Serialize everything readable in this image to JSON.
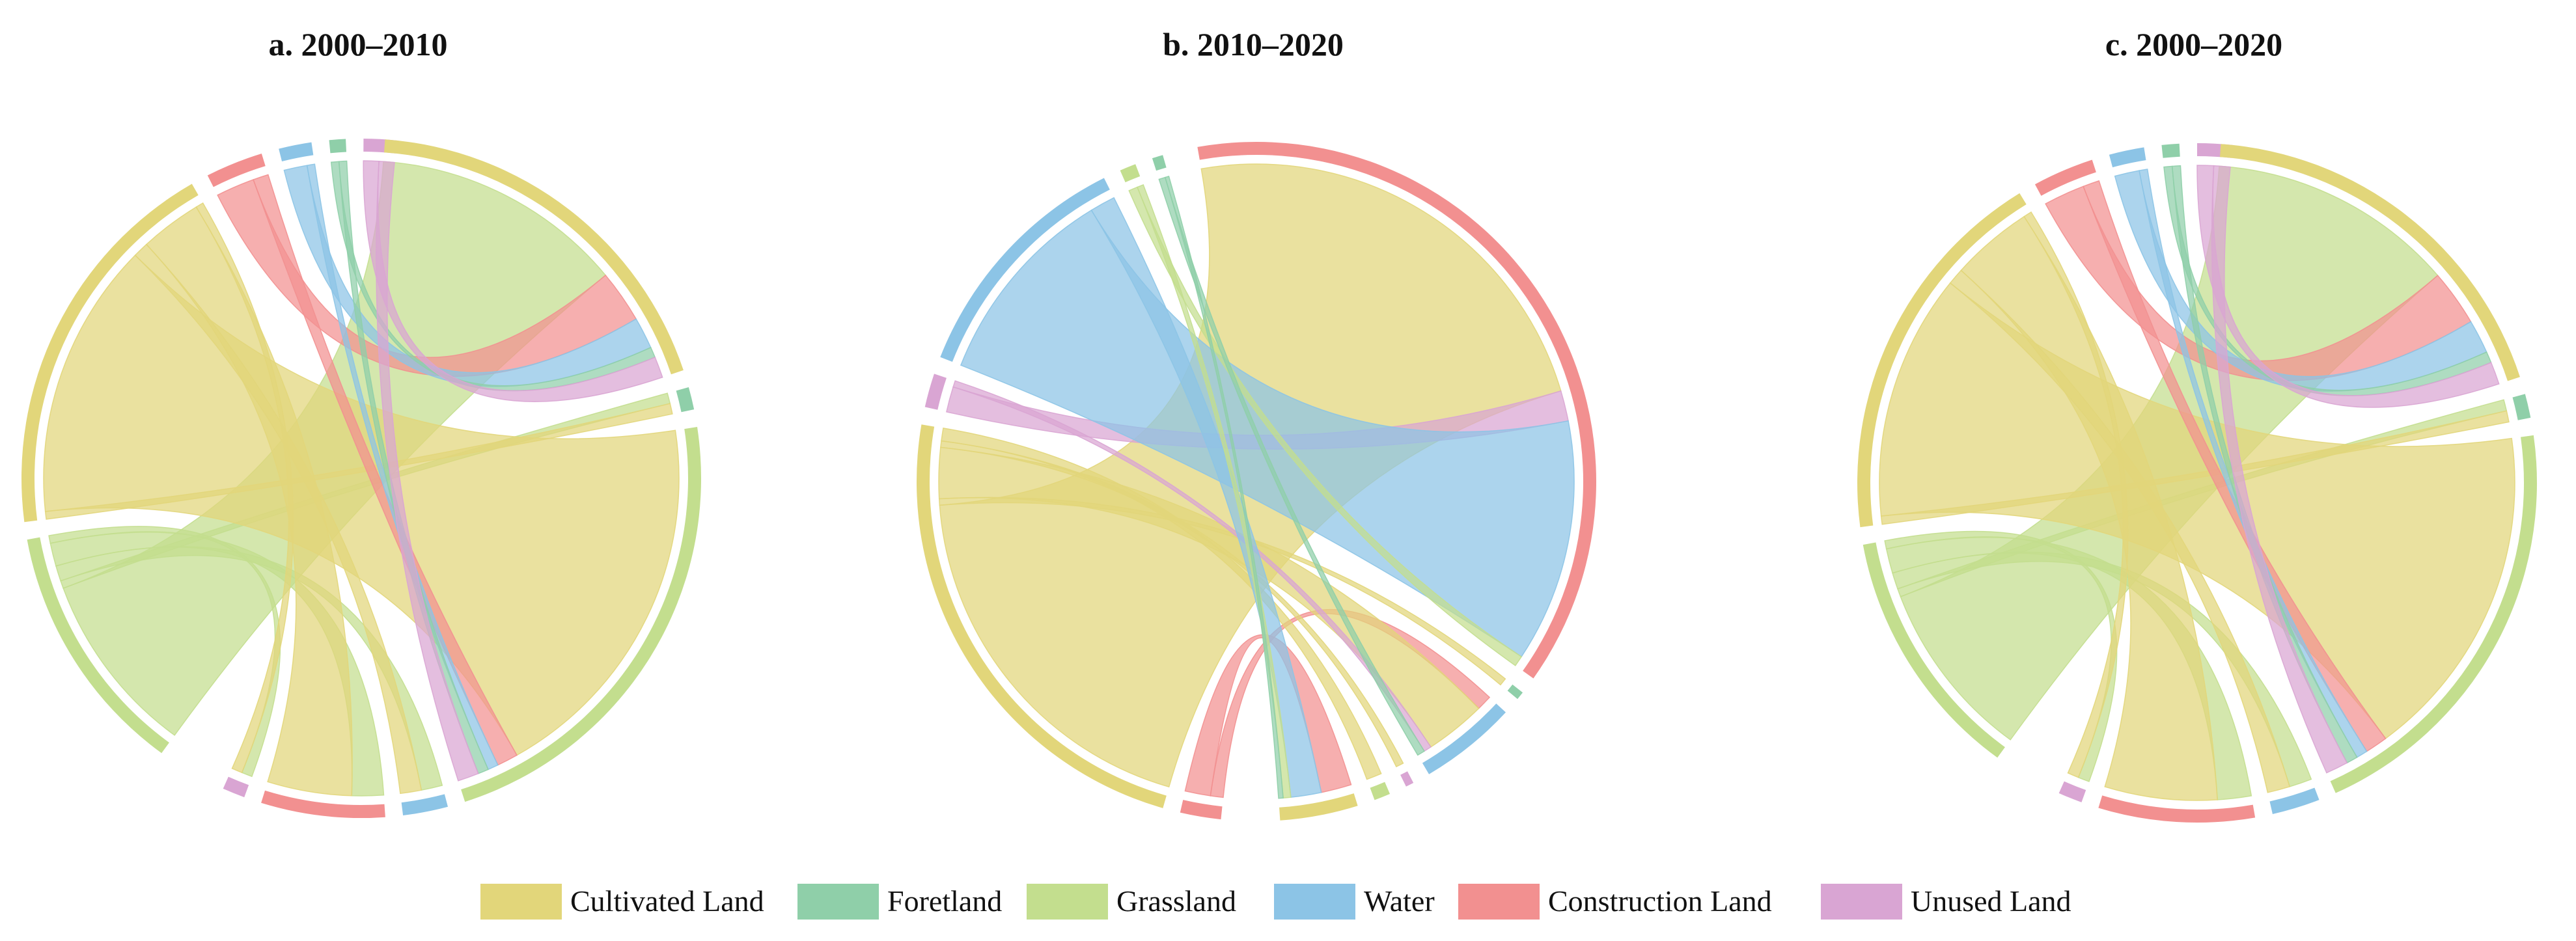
{
  "figure": {
    "legend": [
      {
        "key": "cultivated",
        "label": "Cultivated Land",
        "color": "#E2D67A"
      },
      {
        "key": "foreland",
        "label": "Foretland",
        "color": "#8FCFA9"
      },
      {
        "key": "grassland",
        "label": "Grassland",
        "color": "#C3DE8E"
      },
      {
        "key": "water",
        "label": "Water",
        "color": "#8CC4E6"
      },
      {
        "key": "construction",
        "label": "Construction Land",
        "color": "#F29090"
      },
      {
        "key": "unused",
        "label": "Unused Land",
        "color": "#D9A5D3"
      }
    ]
  },
  "chart_data": [
    {
      "type": "chord",
      "title": "a. 2000–2010",
      "from_categories": [
        "Cultivated Land",
        "Foretland",
        "Grassland",
        "Water",
        "Construction Land",
        "Unused Land"
      ],
      "to_categories": [
        "Cultivated Land",
        "Foretland",
        "Grassland",
        "Water",
        "Construction Land",
        "Unused Land"
      ],
      "source_order": [
        "Grassland",
        "Cultivated Land",
        "Construction Land",
        "Water",
        "Foretland",
        "Unused Land"
      ],
      "target_order": [
        "Cultivated Land",
        "Foretland",
        "Grassland",
        "Water",
        "Construction Land",
        "Unused Land"
      ],
      "flows": [
        {
          "from": "Cultivated Land",
          "to": "Grassland",
          "value": 36
        },
        {
          "from": "Cultivated Land",
          "to": "Construction Land",
          "value": 8
        },
        {
          "from": "Cultivated Land",
          "to": "Water",
          "value": 2
        },
        {
          "from": "Cultivated Land",
          "to": "Foretland",
          "value": 1
        },
        {
          "from": "Cultivated Land",
          "to": "Unused Land",
          "value": 1
        },
        {
          "from": "Grassland",
          "to": "Cultivated Land",
          "value": 24
        },
        {
          "from": "Grassland",
          "to": "Construction Land",
          "value": 3
        },
        {
          "from": "Grassland",
          "to": "Water",
          "value": 2
        },
        {
          "from": "Grassland",
          "to": "Foretland",
          "value": 1
        },
        {
          "from": "Grassland",
          "to": "Unused Land",
          "value": 1
        },
        {
          "from": "Construction Land",
          "to": "Cultivated Land",
          "value": 5
        },
        {
          "from": "Construction Land",
          "to": "Grassland",
          "value": 2
        },
        {
          "from": "Water",
          "to": "Cultivated Land",
          "value": 3
        },
        {
          "from": "Water",
          "to": "Grassland",
          "value": 1
        },
        {
          "from": "Foretland",
          "to": "Cultivated Land",
          "value": 1
        },
        {
          "from": "Foretland",
          "to": "Grassland",
          "value": 1
        },
        {
          "from": "Unused Land",
          "to": "Cultivated Land",
          "value": 2
        },
        {
          "from": "Unused Land",
          "to": "Grassland",
          "value": 2
        }
      ]
    },
    {
      "type": "chord",
      "title": "b. 2010–2020",
      "from_categories": [
        "Cultivated Land",
        "Foretland",
        "Grassland",
        "Water",
        "Construction Land",
        "Unused Land"
      ],
      "to_categories": [
        "Cultivated Land",
        "Foretland",
        "Grassland",
        "Water",
        "Construction Land",
        "Unused Land"
      ],
      "source_order": [
        "Construction Land",
        "Cultivated Land",
        "Unused Land",
        "Water",
        "Grassland",
        "Foretland"
      ],
      "target_order": [
        "Construction Land",
        "Foretland",
        "Water",
        "Unused Land",
        "Grassland",
        "Cultivated Land"
      ],
      "flows": [
        {
          "from": "Cultivated Land",
          "to": "Construction Land",
          "value": 30
        },
        {
          "from": "Cultivated Land",
          "to": "Water",
          "value": 4
        },
        {
          "from": "Cultivated Land",
          "to": "Grassland",
          "value": 1
        },
        {
          "from": "Cultivated Land",
          "to": "Foretland",
          "value": 0.5
        },
        {
          "from": "Cultivated Land",
          "to": "Unused Land",
          "value": 0.5
        },
        {
          "from": "Water",
          "to": "Construction Land",
          "value": 16
        },
        {
          "from": "Water",
          "to": "Cultivated Land",
          "value": 2
        },
        {
          "from": "Construction Land",
          "to": "Cultivated Land",
          "value": 2
        },
        {
          "from": "Construction Land",
          "to": "Water",
          "value": 1
        },
        {
          "from": "Unused Land",
          "to": "Construction Land",
          "value": 2
        },
        {
          "from": "Unused Land",
          "to": "Water",
          "value": 0.5
        },
        {
          "from": "Grassland",
          "to": "Construction Land",
          "value": 0.7
        },
        {
          "from": "Grassland",
          "to": "Cultivated Land",
          "value": 0.5
        },
        {
          "from": "Foretland",
          "to": "Water",
          "value": 0.5
        },
        {
          "from": "Foretland",
          "to": "Cultivated Land",
          "value": 0.3
        }
      ]
    },
    {
      "type": "chord",
      "title": "c. 2000–2020",
      "from_categories": [
        "Cultivated Land",
        "Foretland",
        "Grassland",
        "Water",
        "Construction Land",
        "Unused Land"
      ],
      "to_categories": [
        "Cultivated Land",
        "Foretland",
        "Grassland",
        "Water",
        "Construction Land",
        "Unused Land"
      ],
      "source_order": [
        "Grassland",
        "Cultivated Land",
        "Construction Land",
        "Water",
        "Foretland",
        "Unused Land"
      ],
      "target_order": [
        "Cultivated Land",
        "Foretland",
        "Grassland",
        "Water",
        "Construction Land",
        "Unused Land"
      ],
      "flows": [
        {
          "from": "Cultivated Land",
          "to": "Grassland",
          "value": 30
        },
        {
          "from": "Cultivated Land",
          "to": "Construction Land",
          "value": 10
        },
        {
          "from": "Cultivated Land",
          "to": "Water",
          "value": 2
        },
        {
          "from": "Cultivated Land",
          "to": "Foretland",
          "value": 1
        },
        {
          "from": "Cultivated Land",
          "to": "Unused Land",
          "value": 1
        },
        {
          "from": "Grassland",
          "to": "Cultivated Land",
          "value": 22
        },
        {
          "from": "Grassland",
          "to": "Construction Land",
          "value": 3
        },
        {
          "from": "Grassland",
          "to": "Water",
          "value": 2
        },
        {
          "from": "Grassland",
          "to": "Foretland",
          "value": 1
        },
        {
          "from": "Grassland",
          "to": "Unused Land",
          "value": 1
        },
        {
          "from": "Construction Land",
          "to": "Cultivated Land",
          "value": 5
        },
        {
          "from": "Construction Land",
          "to": "Grassland",
          "value": 2
        },
        {
          "from": "Water",
          "to": "Cultivated Land",
          "value": 3
        },
        {
          "from": "Water",
          "to": "Grassland",
          "value": 1
        },
        {
          "from": "Foretland",
          "to": "Cultivated Land",
          "value": 1
        },
        {
          "from": "Foretland",
          "to": "Grassland",
          "value": 1
        },
        {
          "from": "Unused Land",
          "to": "Cultivated Land",
          "value": 2
        },
        {
          "from": "Unused Land",
          "to": "Grassland",
          "value": 2
        }
      ]
    }
  ]
}
